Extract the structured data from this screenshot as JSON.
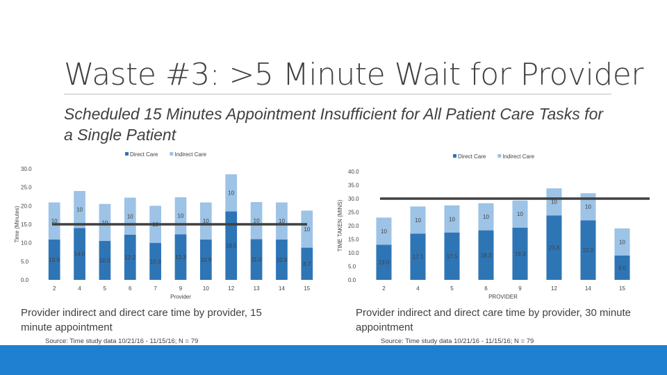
{
  "slide": {
    "title": "Waste #3: >5 Minute Wait for Provider",
    "subtitle": "Scheduled 15 Minutes Appointment Insufficient for All Patient Care Tasks for a Single Patient",
    "colors": {
      "direct": "#2e75b6",
      "indirect": "#9dc3e6",
      "threshold": "#404040",
      "bottom_bar": "#1f7fd1"
    }
  },
  "left": {
    "caption": "Provider indirect and direct care time by provider, 15 minute appointment",
    "source": "Source: Time study data 10/21/16 - 11/15/16; N = 79"
  },
  "right": {
    "caption": "Provider indirect and direct care time by provider, 30 minute appointment",
    "source": "Source: Time study data 10/21/16 - 11/15/16; N = 79"
  },
  "chart_data": [
    {
      "type": "bar",
      "stacked": true,
      "title": "",
      "xlabel": "Provider",
      "ylabel": "Time (Minutes)",
      "ylim": [
        0,
        30
      ],
      "yticks": [
        0,
        5,
        10,
        15,
        20,
        25,
        30
      ],
      "ytick_labels": [
        "0.0",
        "5.0",
        "10.0",
        "15.0",
        "20.0",
        "25.0",
        "30.0"
      ],
      "categories": [
        "2",
        "4",
        "5",
        "6",
        "7",
        "9",
        "10",
        "12",
        "13",
        "14",
        "15"
      ],
      "series": [
        {
          "name": "Direct Care",
          "values": [
            10.9,
            14.0,
            10.5,
            12.2,
            10.0,
            12.3,
            10.9,
            18.5,
            11.0,
            10.9,
            8.7
          ],
          "labels": [
            "10.9",
            "14.0",
            "10.5",
            "12.2",
            "10.0",
            "12.3",
            "10.9",
            "18.5",
            "11.0",
            "10.9",
            "8.7"
          ]
        },
        {
          "name": "Indirect Care",
          "values": [
            10,
            10,
            10,
            10,
            10,
            10,
            10,
            10,
            10,
            10,
            10
          ],
          "labels": [
            "10",
            "10",
            "10",
            "10",
            "10",
            "10",
            "10",
            "10",
            "10",
            "10",
            "10"
          ]
        }
      ],
      "threshold": 15,
      "legend": "top"
    },
    {
      "type": "bar",
      "stacked": true,
      "title": "",
      "xlabel": "PROVIDER",
      "ylabel": "TIME TAKEN (MINS)",
      "ylim": [
        0,
        40
      ],
      "yticks": [
        0,
        5,
        10,
        15,
        20,
        25,
        30,
        35,
        40
      ],
      "ytick_labels": [
        "0.0",
        "5.0",
        "10.0",
        "15.0",
        "20.0",
        "25.0",
        "30.0",
        "35.0",
        "40.0"
      ],
      "categories": [
        "2",
        "4",
        "5",
        "6",
        "9",
        "12",
        "14",
        "15"
      ],
      "series": [
        {
          "name": "Direct Care",
          "values": [
            13.0,
            17.1,
            17.5,
            18.3,
            19.3,
            23.8,
            22.0,
            9.0
          ],
          "labels": [
            "13.0",
            "17.1",
            "17.5",
            "18.3",
            "19.3",
            "23.8",
            "22.0",
            "9.0"
          ]
        },
        {
          "name": "Indirect Care",
          "values": [
            10,
            10,
            10,
            10,
            10,
            10,
            10,
            10
          ],
          "labels": [
            "10",
            "10",
            "10",
            "10",
            "10",
            "10",
            "10",
            "10"
          ]
        }
      ],
      "threshold": 30,
      "legend": "top"
    }
  ]
}
